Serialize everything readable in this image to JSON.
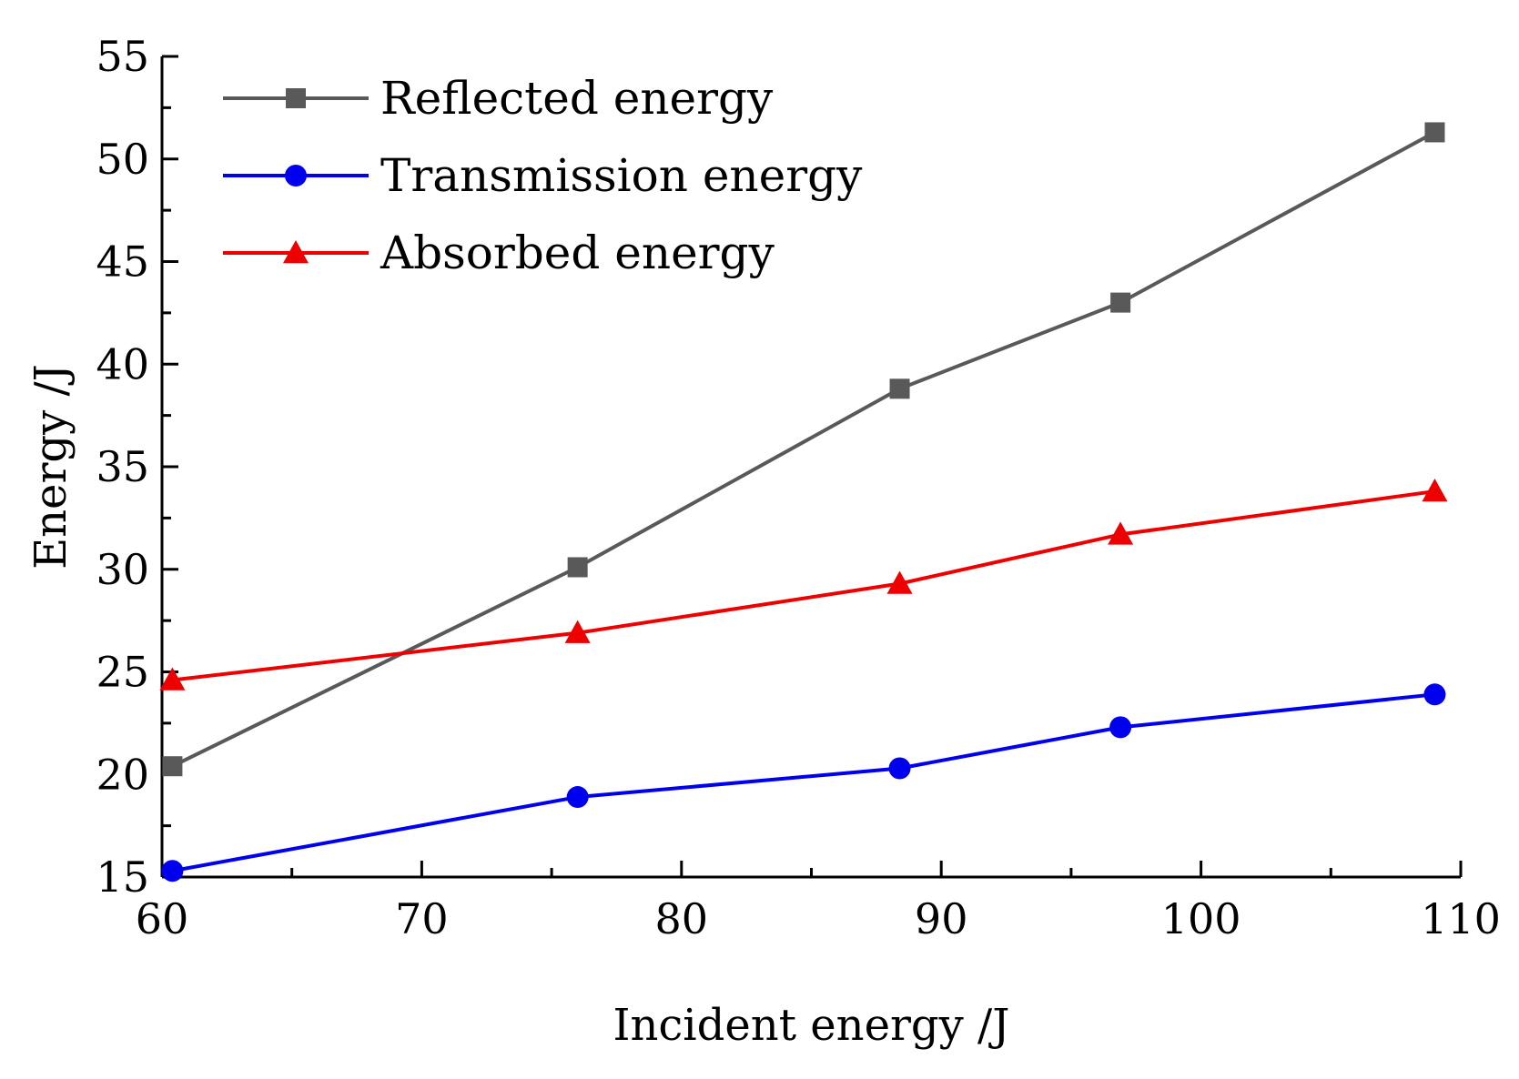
{
  "chart_data": {
    "type": "line",
    "title": "",
    "xlabel": "Incident energy /J",
    "ylabel": "Energy /J",
    "xlim": [
      60,
      110
    ],
    "ylim": [
      15,
      55
    ],
    "xticks": [
      60,
      70,
      80,
      90,
      100,
      110
    ],
    "yticks": [
      15,
      20,
      25,
      30,
      35,
      40,
      45,
      50,
      55
    ],
    "grid": false,
    "legend_position": "top-left",
    "series": [
      {
        "name": "Reflected energy",
        "color": "#595959",
        "marker": "square",
        "x": [
          60.4,
          76.0,
          88.4,
          96.9,
          109.0
        ],
        "y": [
          20.4,
          30.1,
          38.8,
          43.0,
          51.3
        ]
      },
      {
        "name": "Transmission energy",
        "color": "#0000ee",
        "marker": "circle",
        "x": [
          60.4,
          76.0,
          88.4,
          96.9,
          109.0
        ],
        "y": [
          15.3,
          18.9,
          20.3,
          22.3,
          23.9
        ]
      },
      {
        "name": "Absorbed energy",
        "color": "#ee0000",
        "marker": "triangle",
        "x": [
          60.4,
          76.0,
          88.4,
          96.9,
          109.0
        ],
        "y": [
          24.6,
          26.9,
          29.3,
          31.7,
          33.8
        ]
      }
    ]
  }
}
